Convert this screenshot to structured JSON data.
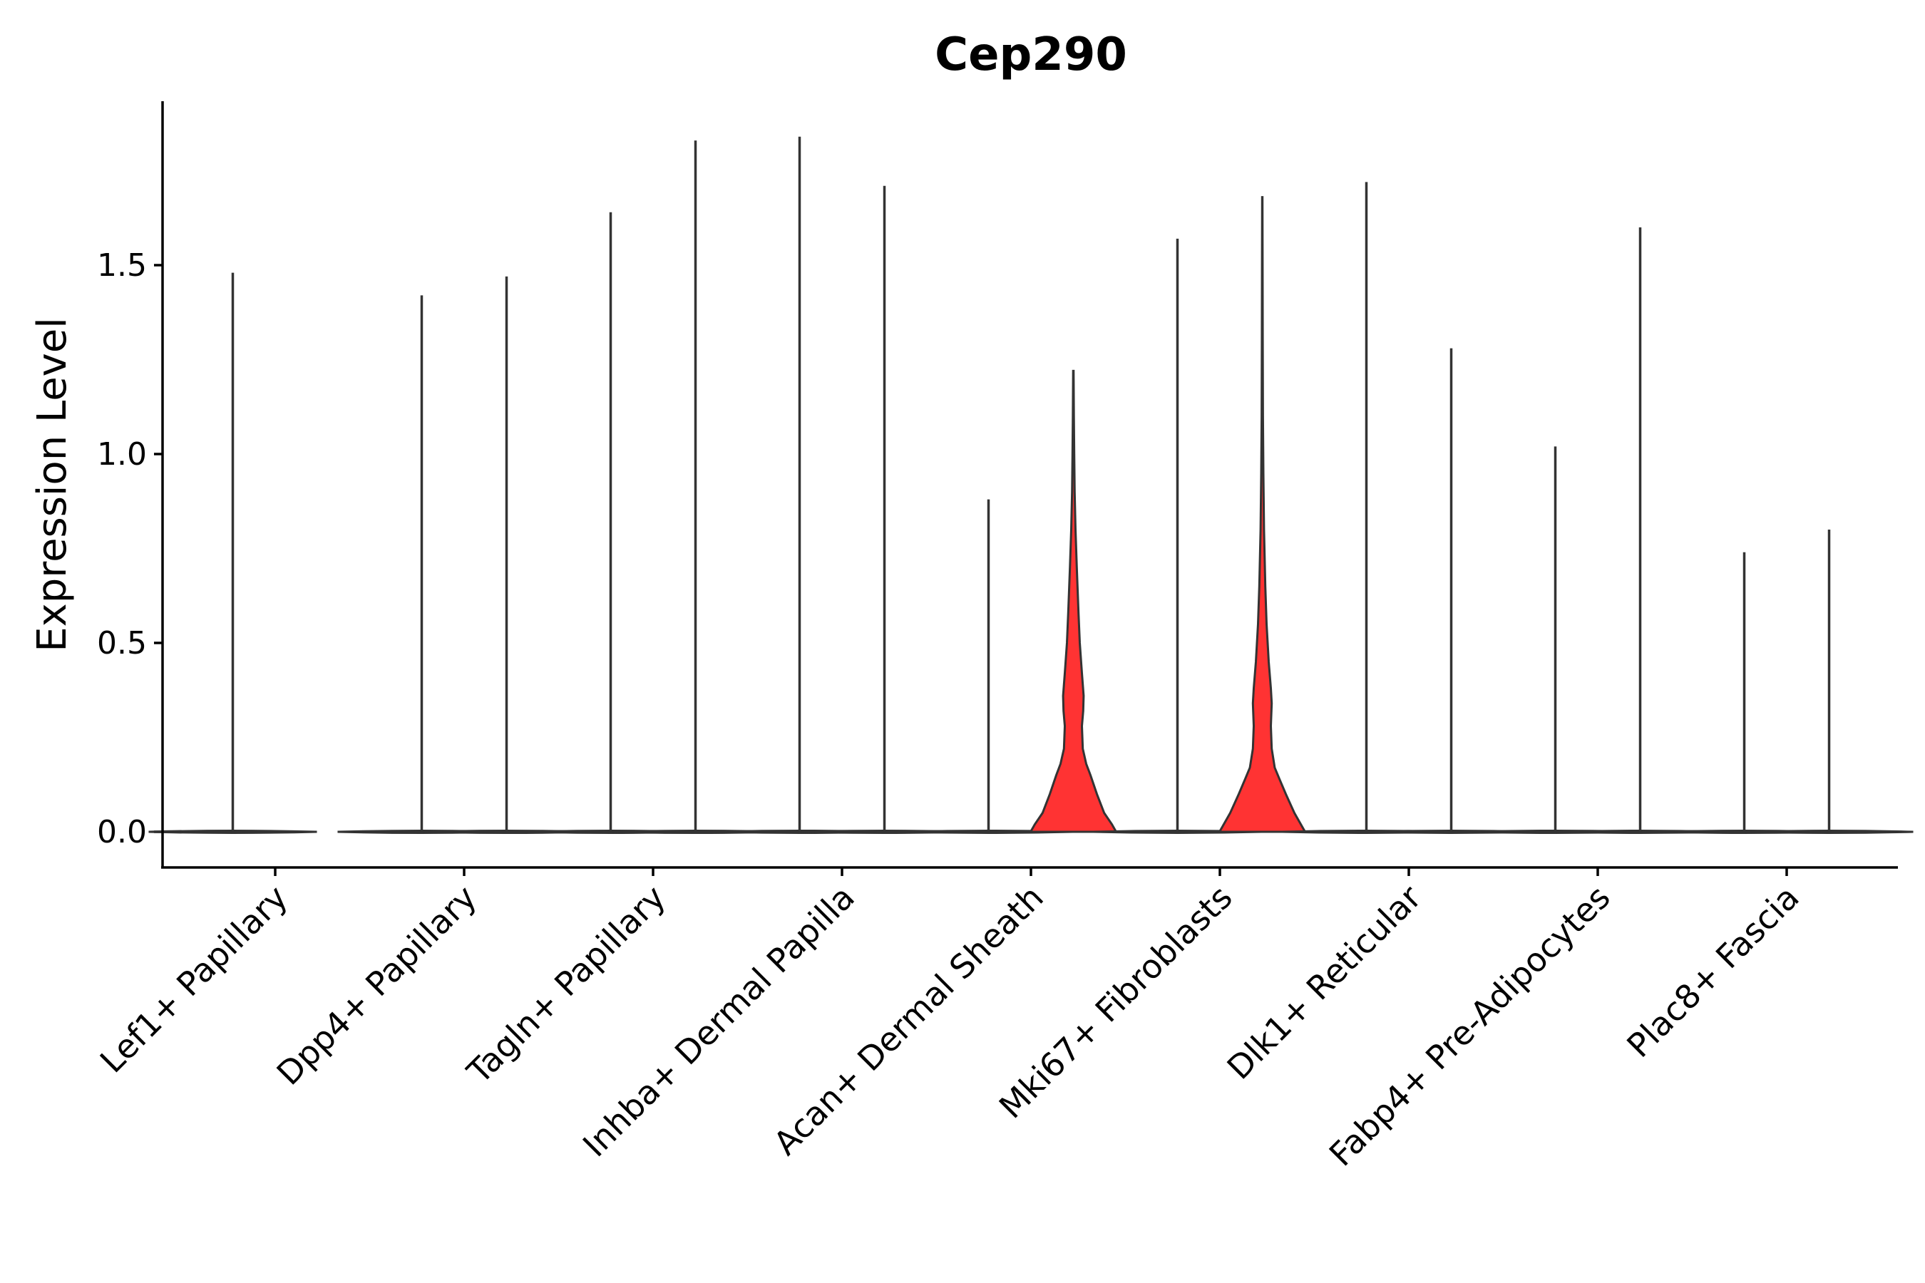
{
  "chart_data": {
    "type": "violin",
    "title": "Cep290",
    "xlabel": "",
    "ylabel": "Expression Level",
    "ylim": [
      -0.09,
      1.92
    ],
    "yticks": [
      0.0,
      0.5,
      1.0,
      1.5
    ],
    "ytick_labels": [
      "0.0",
      "0.5",
      "1.0",
      "1.5"
    ],
    "grid": false,
    "legend": "none",
    "colors": {
      "highlight": "#FF3333",
      "base": "#FFFFFF",
      "outline": "#333333"
    },
    "categories": [
      "Lef1+ Papillary",
      "Dpp4+ Papillary",
      "Tagln+ Papillary",
      "Inhba+ Dermal Papilla",
      "Acan+ Dermal Sheath",
      "Mki67+ Fibroblasts",
      "Dlk1+ Reticular",
      "Fabp4+ Pre-Adipocytes",
      "Plac8+ Fascia"
    ],
    "series": [
      {
        "max": [
          1.48,
          1.42,
          1.64,
          1.84,
          0.88,
          1.57,
          1.72,
          1.02,
          0.74
        ],
        "fill": "#FFFFFF"
      },
      {
        "max": [
          null,
          1.47,
          1.83,
          1.71,
          1.22,
          1.68,
          1.28,
          1.6,
          0.8
        ],
        "fill": [
          "#FFFFFF",
          "#FFFFFF",
          "#FFFFFF",
          "#FFFFFF",
          "#FF3333",
          "#FF3333",
          "#FFFFFF",
          "#FFFFFF",
          "#FFFFFF"
        ]
      }
    ],
    "density_profiles": {
      "Acan+ Dermal Sheath": {
        "y": [
          0.0,
          0.02,
          0.05,
          0.1,
          0.15,
          0.18,
          0.22,
          0.28,
          0.32,
          0.36,
          0.42,
          0.5,
          0.58,
          0.7,
          0.8,
          0.9,
          1.0,
          1.1,
          1.22
        ],
        "half_width": [
          1.0,
          0.9,
          0.72,
          0.55,
          0.4,
          0.3,
          0.22,
          0.2,
          0.23,
          0.24,
          0.2,
          0.15,
          0.12,
          0.08,
          0.05,
          0.03,
          0.02,
          0.012,
          0.005
        ]
      },
      "Mki67+ Fibroblasts": {
        "y": [
          0.0,
          0.02,
          0.05,
          0.1,
          0.14,
          0.17,
          0.22,
          0.28,
          0.34,
          0.38,
          0.45,
          0.55,
          0.65,
          0.8,
          0.95,
          1.1,
          1.3,
          1.5,
          1.68
        ],
        "half_width": [
          1.0,
          0.9,
          0.75,
          0.55,
          0.4,
          0.29,
          0.22,
          0.2,
          0.22,
          0.2,
          0.15,
          0.1,
          0.07,
          0.04,
          0.025,
          0.015,
          0.01,
          0.006,
          0.004
        ]
      }
    }
  }
}
